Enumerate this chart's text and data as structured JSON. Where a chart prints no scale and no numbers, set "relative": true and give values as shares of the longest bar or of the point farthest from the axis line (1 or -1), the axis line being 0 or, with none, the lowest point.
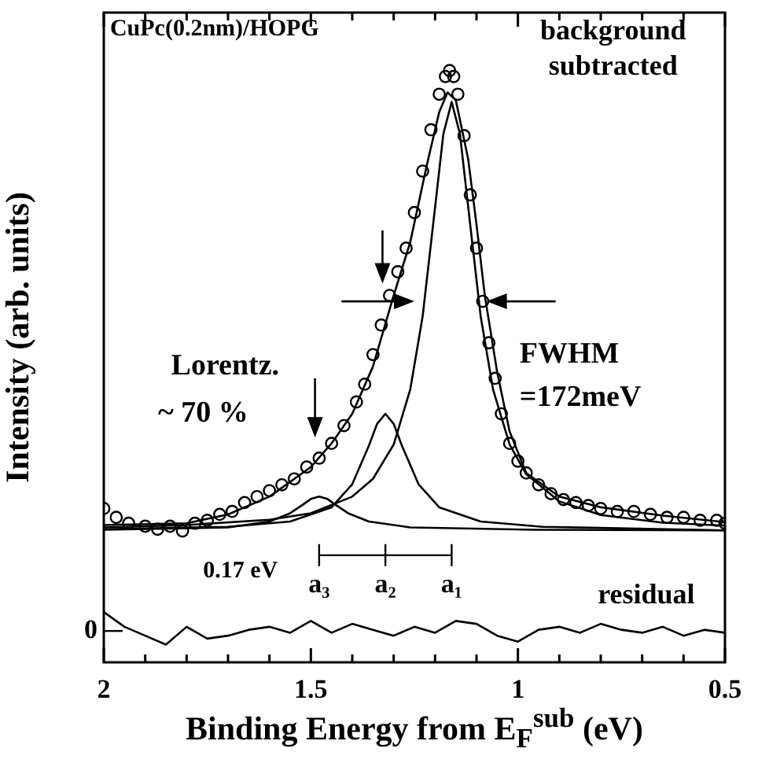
{
  "chart_data": {
    "type": "line",
    "xlabel": "Binding Energy from E$_{F}$$^{sub}$ (eV)",
    "ylabel": "Intensity (arb. units)",
    "relative": true,
    "grid": false,
    "xlim": [
      2,
      0.5
    ],
    "xticks": [
      2,
      {
        "value": 1.9,
        "label": null
      },
      {
        "value": 1.8,
        "label": null
      },
      {
        "value": 1.7,
        "label": null
      },
      {
        "value": 1.6,
        "label": null
      },
      1.5,
      {
        "value": 1.4,
        "label": null
      },
      {
        "value": 1.3,
        "label": null
      },
      {
        "value": 1.2,
        "label": null
      },
      {
        "value": 1.1,
        "label": null
      },
      1,
      {
        "value": 0.9,
        "label": null
      },
      {
        "value": 0.8,
        "label": null
      },
      {
        "value": 0.7,
        "label": null
      },
      {
        "value": 0.6,
        "label": null
      },
      0.5
    ],
    "series": [
      {
        "type": "scatter",
        "marker": "circle",
        "color": "#000000",
        "x": [
          2.0,
          1.97,
          1.94,
          1.9,
          1.87,
          1.84,
          1.81,
          1.78,
          1.75,
          1.72,
          1.69,
          1.66,
          1.63,
          1.6,
          1.57,
          1.54,
          1.51,
          1.48,
          1.45,
          1.42,
          1.39,
          1.37,
          1.35,
          1.33,
          1.31,
          1.29,
          1.27,
          1.25,
          1.23,
          1.21,
          1.19,
          1.175,
          1.165,
          1.155,
          1.145,
          1.13,
          1.115,
          1.1,
          1.085,
          1.07,
          1.055,
          1.04,
          1.02,
          1.0,
          0.98,
          0.95,
          0.92,
          0.89,
          0.86,
          0.83,
          0.8,
          0.76,
          0.72,
          0.68,
          0.64,
          0.6,
          0.56,
          0.52,
          0.5
        ],
        "values": [
          0.26,
          0.245,
          0.235,
          0.23,
          0.225,
          0.23,
          0.222,
          0.235,
          0.24,
          0.25,
          0.255,
          0.27,
          0.28,
          0.29,
          0.3,
          0.31,
          0.33,
          0.345,
          0.37,
          0.4,
          0.44,
          0.47,
          0.52,
          0.57,
          0.62,
          0.66,
          0.7,
          0.76,
          0.83,
          0.9,
          0.96,
          0.99,
          1.0,
          0.99,
          0.96,
          0.89,
          0.79,
          0.7,
          0.61,
          0.54,
          0.48,
          0.42,
          0.37,
          0.34,
          0.32,
          0.3,
          0.285,
          0.275,
          0.27,
          0.265,
          0.26,
          0.255,
          0.255,
          0.25,
          0.245,
          0.245,
          0.24,
          0.24,
          0.235
        ]
      },
      {
        "type": "line",
        "color": "#000000",
        "x": [
          2.0,
          1.8,
          1.7,
          1.6,
          1.5,
          1.45,
          1.4,
          1.35,
          1.3,
          1.26,
          1.22,
          1.19,
          1.17,
          1.15,
          1.12,
          1.1,
          1.08,
          1.05,
          1.02,
          0.98,
          0.9,
          0.8,
          0.65,
          0.5
        ],
        "values": [
          0.232,
          0.235,
          0.25,
          0.28,
          0.33,
          0.37,
          0.42,
          0.5,
          0.62,
          0.71,
          0.84,
          0.93,
          0.963,
          0.95,
          0.85,
          0.74,
          0.62,
          0.49,
          0.39,
          0.32,
          0.28,
          0.262,
          0.248,
          0.237
        ]
      },
      {
        "type": "line",
        "color": "#000000",
        "x": [
          2.0,
          1.8,
          1.6,
          1.5,
          1.4,
          1.35,
          1.3,
          1.26,
          1.23,
          1.2,
          1.18,
          1.16,
          1.14,
          1.12,
          1.09,
          1.06,
          1.02,
          0.98,
          0.9,
          0.8,
          0.65,
          0.5
        ],
        "values": [
          0.228,
          0.232,
          0.241,
          0.252,
          0.28,
          0.31,
          0.368,
          0.461,
          0.585,
          0.769,
          0.893,
          0.947,
          0.893,
          0.769,
          0.585,
          0.461,
          0.368,
          0.318,
          0.272,
          0.249,
          0.236,
          0.231
        ]
      },
      {
        "type": "line",
        "color": "#000000",
        "x": [
          2.0,
          1.7,
          1.55,
          1.45,
          1.4,
          1.36,
          1.34,
          1.32,
          1.3,
          1.28,
          1.24,
          1.19,
          1.09,
          0.94,
          0.5
        ],
        "values": [
          0.225,
          0.229,
          0.238,
          0.262,
          0.301,
          0.366,
          0.403,
          0.42,
          0.403,
          0.366,
          0.301,
          0.262,
          0.238,
          0.229,
          0.223
        ]
      },
      {
        "type": "line",
        "color": "#000000",
        "x": [
          2.0,
          1.7,
          1.6,
          1.55,
          1.52,
          1.5,
          1.48,
          1.46,
          1.44,
          1.41,
          1.36,
          1.26,
          0.96,
          0.5
        ],
        "values": [
          0.224,
          0.228,
          0.238,
          0.252,
          0.266,
          0.276,
          0.28,
          0.276,
          0.266,
          0.252,
          0.238,
          0.228,
          0.224,
          0.223
        ]
      },
      {
        "type": "line",
        "color": "#000000",
        "x": [
          2.0,
          1.95,
          1.9,
          1.85,
          1.8,
          1.75,
          1.7,
          1.65,
          1.6,
          1.55,
          1.5,
          1.45,
          1.4,
          1.35,
          1.3,
          1.25,
          1.2,
          1.15,
          1.1,
          1.05,
          1.0,
          0.95,
          0.9,
          0.85,
          0.8,
          0.75,
          0.7,
          0.65,
          0.6,
          0.55,
          0.5
        ],
        "values": [
          0.085,
          0.06,
          0.045,
          0.03,
          0.06,
          0.04,
          0.045,
          0.055,
          0.06,
          0.05,
          0.07,
          0.05,
          0.065,
          0.055,
          0.045,
          0.06,
          0.05,
          0.07,
          0.065,
          0.045,
          0.035,
          0.055,
          0.06,
          0.05,
          0.065,
          0.055,
          0.05,
          0.06,
          0.045,
          0.055,
          0.05
        ]
      }
    ],
    "ref_lines": [
      {
        "axis": "y",
        "value": 0.053,
        "label": "0"
      }
    ],
    "annotations": [
      "CuPc(0.2nm)/HOPG",
      "background",
      "subtracted",
      "Lorentz.",
      "~ 70 %",
      "FWHM",
      "=172meV",
      "0.17 eV",
      "a₃",
      "a₂",
      "a₁",
      "residual"
    ]
  }
}
